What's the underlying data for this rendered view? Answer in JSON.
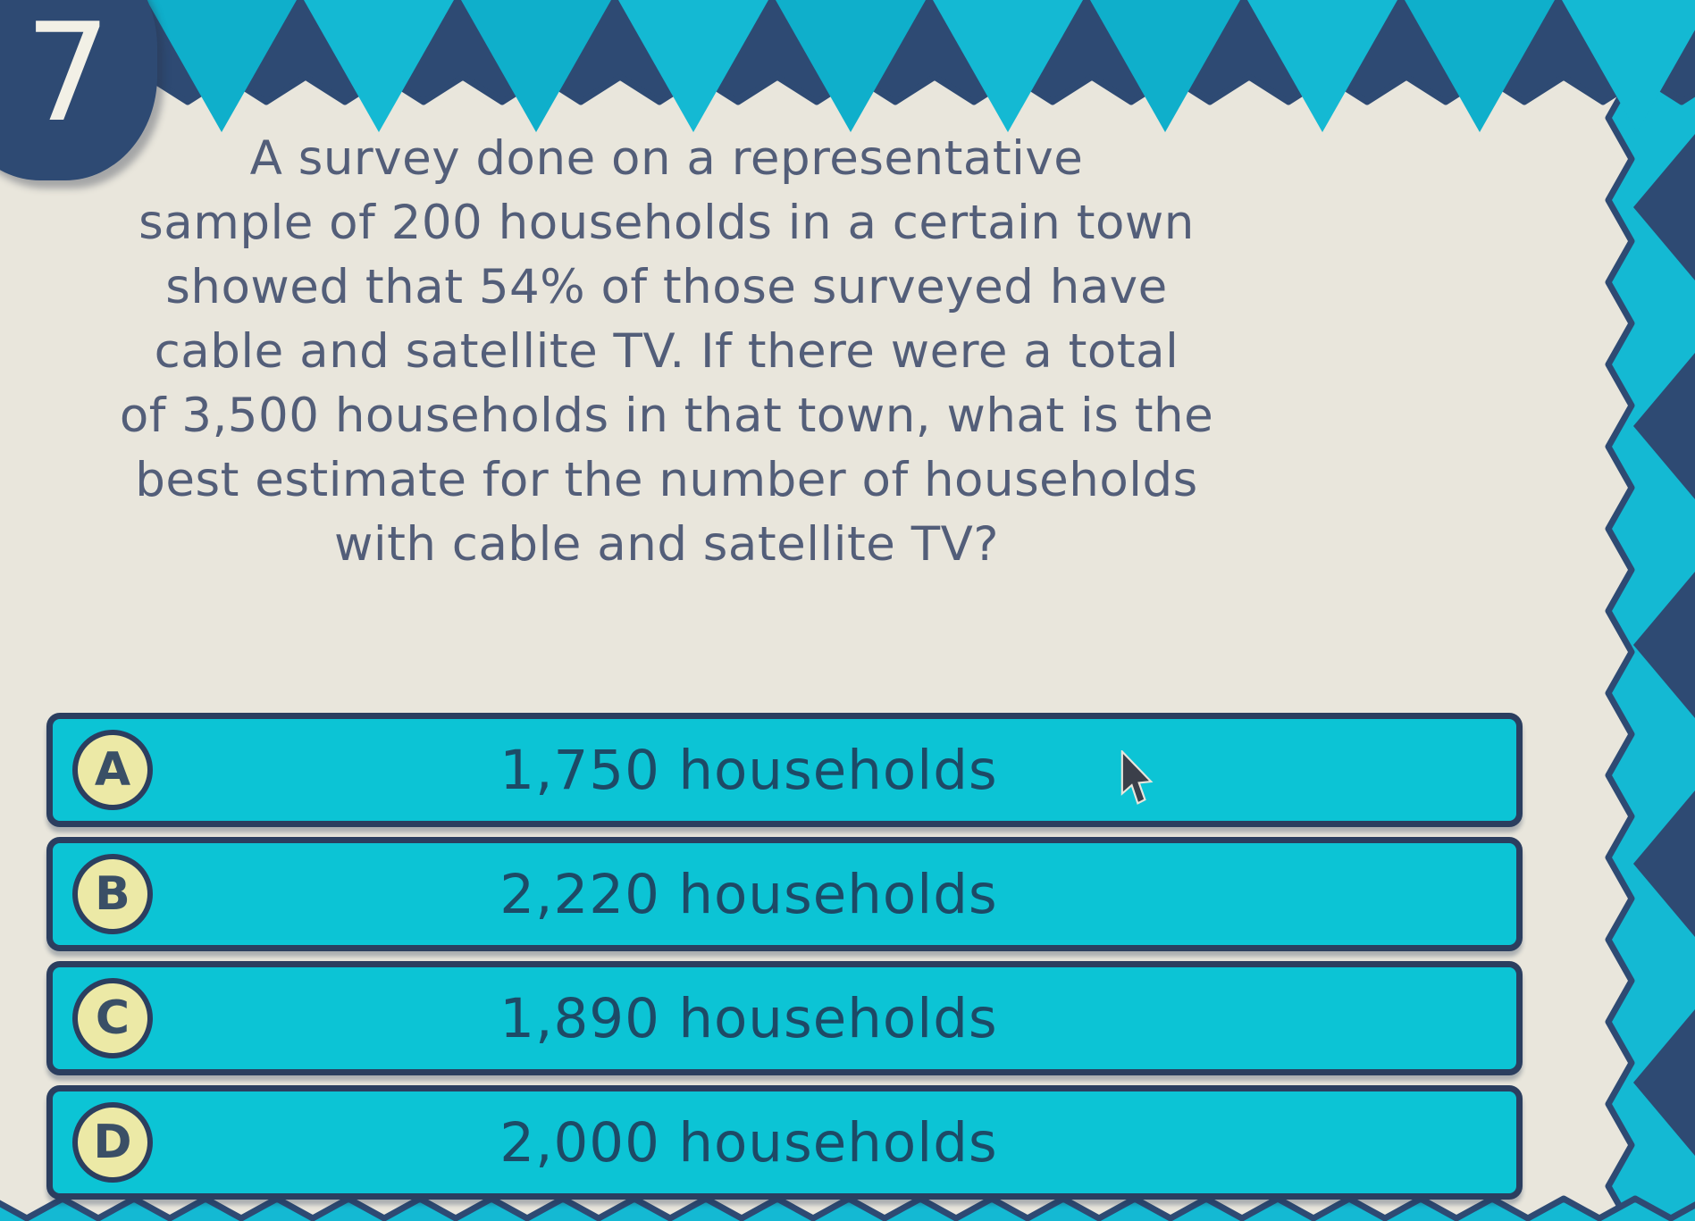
{
  "question": {
    "number": "7",
    "lines": [
      "A survey done on a representative",
      "sample of 200 households in a certain town",
      "showed that 54% of those surveyed have",
      "cable and satellite TV. If there were a total",
      "of 3,500 households in that town, what is the",
      "best estimate for the number of households",
      "with cable and satellite TV?"
    ]
  },
  "answers": [
    {
      "letter": "A",
      "text": "1,750 households"
    },
    {
      "letter": "B",
      "text": "2,220 households"
    },
    {
      "letter": "C",
      "text": "1,890 households"
    },
    {
      "letter": "D",
      "text": "2,000 households"
    }
  ],
  "icons": {
    "mouse_cursor": "arrow-pointer"
  },
  "colors": {
    "navy": "#2e4a73",
    "cyan": "#14b9d3",
    "cyan2": "#0fafcb",
    "cream": "#e9e6dc",
    "bar-cyan": "#0cc4d5",
    "bar-border": "#2b3e5f",
    "badge-fill": "#ece9a6",
    "q-text": "#535e79",
    "a-text": "#1d4a66"
  }
}
